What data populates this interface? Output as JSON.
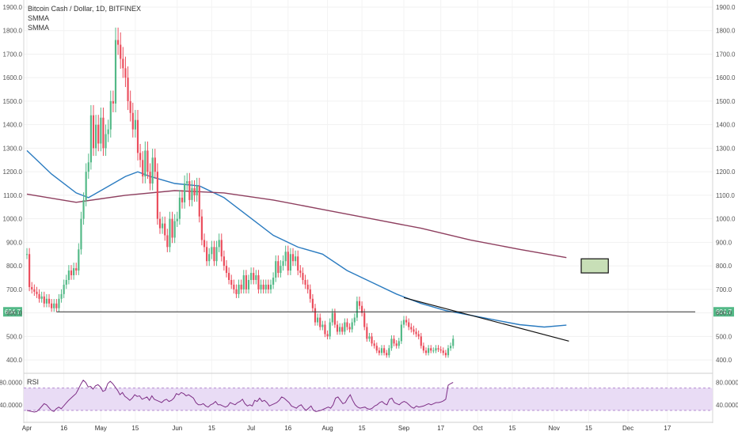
{
  "chart_data": {
    "type": "candlestick",
    "title": "Bitcoin Cash / Dollar, 1D, BITFINEX",
    "indicators": [
      "SMMA",
      "SMMA"
    ],
    "price_axis": {
      "ylim": [
        350,
        1920
      ],
      "ticks": [
        "400.0",
        "500.0",
        "600.0",
        "700.0",
        "800.0",
        "900.0",
        "1000.0",
        "1100.0",
        "1200.0",
        "1300.0",
        "1400.0",
        "1500.0",
        "1600.0",
        "1700.0",
        "1800.0",
        "1900.0"
      ],
      "tick_values": [
        400,
        500,
        600,
        700,
        800,
        900,
        1000,
        1100,
        1200,
        1300,
        1400,
        1500,
        1600,
        1700,
        1800,
        1900
      ]
    },
    "x_axis": {
      "labels": [
        "Apr",
        "16",
        "May",
        "15",
        "Jun",
        "15",
        "Jul",
        "16",
        "Aug",
        "15",
        "Sep",
        "17",
        "Oct",
        "15",
        "Nov",
        "15",
        "Dec",
        "17"
      ],
      "label_days": [
        0,
        15,
        30,
        44,
        61,
        75,
        91,
        106,
        122,
        136,
        153,
        168,
        183,
        197,
        214,
        228,
        244,
        260
      ]
    },
    "current_price_label": "604.7",
    "current_price": 604.7,
    "horizontal_line": 604.7,
    "colors": {
      "up": "#53b987",
      "down": "#eb4d5c",
      "smma_fast": "#2a7bc0",
      "smma_slow": "#8e3f5f",
      "rsi": "#7e2f86",
      "rsi_band": "#e9dcf5",
      "target_box": "#c8dfb7"
    },
    "candles_daily_close": [
      [
        0,
        850
      ],
      [
        1,
        710
      ],
      [
        2,
        700
      ],
      [
        3,
        690
      ],
      [
        4,
        680
      ],
      [
        5,
        660
      ],
      [
        6,
        670
      ],
      [
        7,
        640
      ],
      [
        8,
        660
      ],
      [
        9,
        640
      ],
      [
        10,
        620
      ],
      [
        11,
        640
      ],
      [
        12,
        620
      ],
      [
        13,
        660
      ],
      [
        14,
        680
      ],
      [
        15,
        720
      ],
      [
        16,
        740
      ],
      [
        17,
        780
      ],
      [
        18,
        760
      ],
      [
        19,
        790
      ],
      [
        20,
        780
      ],
      [
        21,
        870
      ],
      [
        22,
        1000
      ],
      [
        23,
        1080
      ],
      [
        24,
        1200
      ],
      [
        25,
        1240
      ],
      [
        26,
        1440
      ],
      [
        27,
        1300
      ],
      [
        28,
        1400
      ],
      [
        29,
        1320
      ],
      [
        30,
        1430
      ],
      [
        31,
        1300
      ],
      [
        32,
        1360
      ],
      [
        33,
        1380
      ],
      [
        34,
        1500
      ],
      [
        35,
        1490
      ],
      [
        36,
        1760
      ],
      [
        37,
        1740
      ],
      [
        38,
        1680
      ],
      [
        39,
        1640
      ],
      [
        40,
        1600
      ],
      [
        41,
        1500
      ],
      [
        42,
        1450
      ],
      [
        43,
        1380
      ],
      [
        44,
        1420
      ],
      [
        45,
        1280
      ],
      [
        46,
        1250
      ],
      [
        47,
        1180
      ],
      [
        48,
        1290
      ],
      [
        49,
        1200
      ],
      [
        50,
        1150
      ],
      [
        51,
        1260
      ],
      [
        52,
        1200
      ],
      [
        53,
        1000
      ],
      [
        54,
        960
      ],
      [
        55,
        980
      ],
      [
        56,
        930
      ],
      [
        57,
        880
      ],
      [
        58,
        1000
      ],
      [
        59,
        920
      ],
      [
        60,
        990
      ],
      [
        61,
        1000
      ],
      [
        62,
        1090
      ],
      [
        63,
        1070
      ],
      [
        64,
        1150
      ],
      [
        65,
        1160
      ],
      [
        66,
        1080
      ],
      [
        67,
        1130
      ],
      [
        68,
        1100
      ],
      [
        69,
        1140
      ],
      [
        70,
        1010
      ],
      [
        71,
        910
      ],
      [
        72,
        880
      ],
      [
        73,
        820
      ],
      [
        74,
        850
      ],
      [
        75,
        880
      ],
      [
        76,
        820
      ],
      [
        77,
        880
      ],
      [
        78,
        910
      ],
      [
        79,
        840
      ],
      [
        80,
        800
      ],
      [
        81,
        770
      ],
      [
        82,
        740
      ],
      [
        83,
        720
      ],
      [
        84,
        700
      ],
      [
        85,
        680
      ],
      [
        86,
        720
      ],
      [
        87,
        700
      ],
      [
        88,
        760
      ],
      [
        89,
        700
      ],
      [
        90,
        740
      ],
      [
        91,
        770
      ],
      [
        92,
        740
      ],
      [
        93,
        760
      ],
      [
        94,
        700
      ],
      [
        95,
        720
      ],
      [
        96,
        700
      ],
      [
        97,
        720
      ],
      [
        98,
        700
      ],
      [
        99,
        720
      ],
      [
        100,
        750
      ],
      [
        101,
        820
      ],
      [
        102,
        770
      ],
      [
        103,
        800
      ],
      [
        104,
        820
      ],
      [
        105,
        860
      ],
      [
        106,
        780
      ],
      [
        107,
        850
      ],
      [
        108,
        820
      ],
      [
        109,
        840
      ],
      [
        110,
        780
      ],
      [
        111,
        770
      ],
      [
        112,
        740
      ],
      [
        113,
        720
      ],
      [
        114,
        700
      ],
      [
        115,
        660
      ],
      [
        116,
        620
      ],
      [
        117,
        560
      ],
      [
        118,
        580
      ],
      [
        119,
        540
      ],
      [
        120,
        550
      ],
      [
        121,
        510
      ],
      [
        122,
        500
      ],
      [
        123,
        560
      ],
      [
        124,
        600
      ],
      [
        125,
        550
      ],
      [
        126,
        520
      ],
      [
        127,
        540
      ],
      [
        128,
        520
      ],
      [
        129,
        560
      ],
      [
        130,
        540
      ],
      [
        131,
        530
      ],
      [
        132,
        560
      ],
      [
        133,
        580
      ],
      [
        134,
        650
      ],
      [
        135,
        630
      ],
      [
        136,
        600
      ],
      [
        137,
        540
      ],
      [
        138,
        490
      ],
      [
        139,
        500
      ],
      [
        140,
        470
      ],
      [
        141,
        460
      ],
      [
        142,
        440
      ],
      [
        143,
        430
      ],
      [
        144,
        450
      ],
      [
        145,
        430
      ],
      [
        146,
        420
      ],
      [
        147,
        450
      ],
      [
        148,
        490
      ],
      [
        149,
        470
      ],
      [
        150,
        460
      ],
      [
        151,
        480
      ],
      [
        152,
        550
      ],
      [
        153,
        570
      ],
      [
        154,
        560
      ],
      [
        155,
        540
      ],
      [
        156,
        530
      ],
      [
        157,
        520
      ],
      [
        158,
        510
      ],
      [
        159,
        500
      ],
      [
        160,
        460
      ],
      [
        161,
        440
      ],
      [
        162,
        430
      ],
      [
        163,
        450
      ],
      [
        164,
        440
      ],
      [
        165,
        440
      ],
      [
        166,
        450
      ],
      [
        167,
        445
      ],
      [
        168,
        440
      ],
      [
        169,
        430
      ],
      [
        170,
        420
      ],
      [
        171,
        450
      ],
      [
        172,
        460
      ],
      [
        173,
        490
      ]
    ],
    "smma_fast_points": [
      [
        0,
        1290
      ],
      [
        10,
        1190
      ],
      [
        20,
        1110
      ],
      [
        25,
        1090
      ],
      [
        30,
        1120
      ],
      [
        40,
        1180
      ],
      [
        45,
        1200
      ],
      [
        50,
        1180
      ],
      [
        60,
        1150
      ],
      [
        70,
        1140
      ],
      [
        80,
        1090
      ],
      [
        90,
        1010
      ],
      [
        100,
        930
      ],
      [
        110,
        880
      ],
      [
        120,
        850
      ],
      [
        130,
        780
      ],
      [
        140,
        730
      ],
      [
        150,
        680
      ],
      [
        160,
        640
      ],
      [
        170,
        610
      ],
      [
        180,
        590
      ],
      [
        190,
        570
      ],
      [
        200,
        550
      ],
      [
        210,
        540
      ],
      [
        219,
        548
      ]
    ],
    "smma_slow_points": [
      [
        0,
        1105
      ],
      [
        20,
        1070
      ],
      [
        40,
        1100
      ],
      [
        60,
        1120
      ],
      [
        80,
        1110
      ],
      [
        100,
        1080
      ],
      [
        120,
        1040
      ],
      [
        140,
        1000
      ],
      [
        160,
        960
      ],
      [
        180,
        910
      ],
      [
        200,
        870
      ],
      [
        219,
        835
      ]
    ],
    "trendline": [
      [
        153,
        665
      ],
      [
        220,
        480
      ]
    ],
    "target_zone": {
      "y1": 770,
      "y2": 830
    },
    "rsi": {
      "label": "RSI",
      "ticks": [
        "80.0000",
        "40.0000"
      ],
      "tick_values": [
        80,
        40
      ],
      "upper_band": 70,
      "lower_band": 30,
      "values": [
        30,
        29,
        28,
        27,
        28,
        32,
        37,
        42,
        40,
        35,
        30,
        28,
        33,
        36,
        33,
        38,
        43,
        48,
        52,
        56,
        60,
        68,
        77,
        84,
        80,
        72,
        73,
        68,
        74,
        76,
        72,
        64,
        66,
        78,
        82,
        78,
        72,
        66,
        58,
        62,
        55,
        52,
        48,
        52,
        58,
        55,
        56,
        50,
        52,
        54,
        48,
        56,
        50,
        48,
        46,
        44,
        48,
        50,
        46,
        48,
        52,
        60,
        58,
        62,
        60,
        56,
        58,
        55,
        52,
        44,
        40,
        40,
        42,
        38,
        36,
        40,
        42,
        46,
        40,
        40,
        38,
        36,
        38,
        44,
        42,
        40,
        44,
        46,
        50,
        42,
        38,
        40,
        38,
        48,
        46,
        52,
        46,
        48,
        44,
        38,
        40,
        42,
        44,
        48,
        54,
        52,
        48,
        44,
        38,
        36,
        34,
        38,
        40,
        34,
        30,
        34,
        38,
        30,
        28,
        29,
        30,
        32,
        34,
        36,
        34,
        40,
        52,
        54,
        48,
        42,
        44,
        52,
        58,
        48,
        40,
        36,
        34,
        35,
        36,
        33,
        32,
        34,
        38,
        40,
        44,
        46,
        42,
        40,
        50,
        52,
        44,
        42,
        40,
        44,
        46,
        44,
        40,
        36,
        34,
        38,
        36,
        37,
        38,
        40,
        42,
        40,
        42,
        44,
        44,
        45,
        47,
        50,
        75,
        78,
        80
      ]
    }
  }
}
